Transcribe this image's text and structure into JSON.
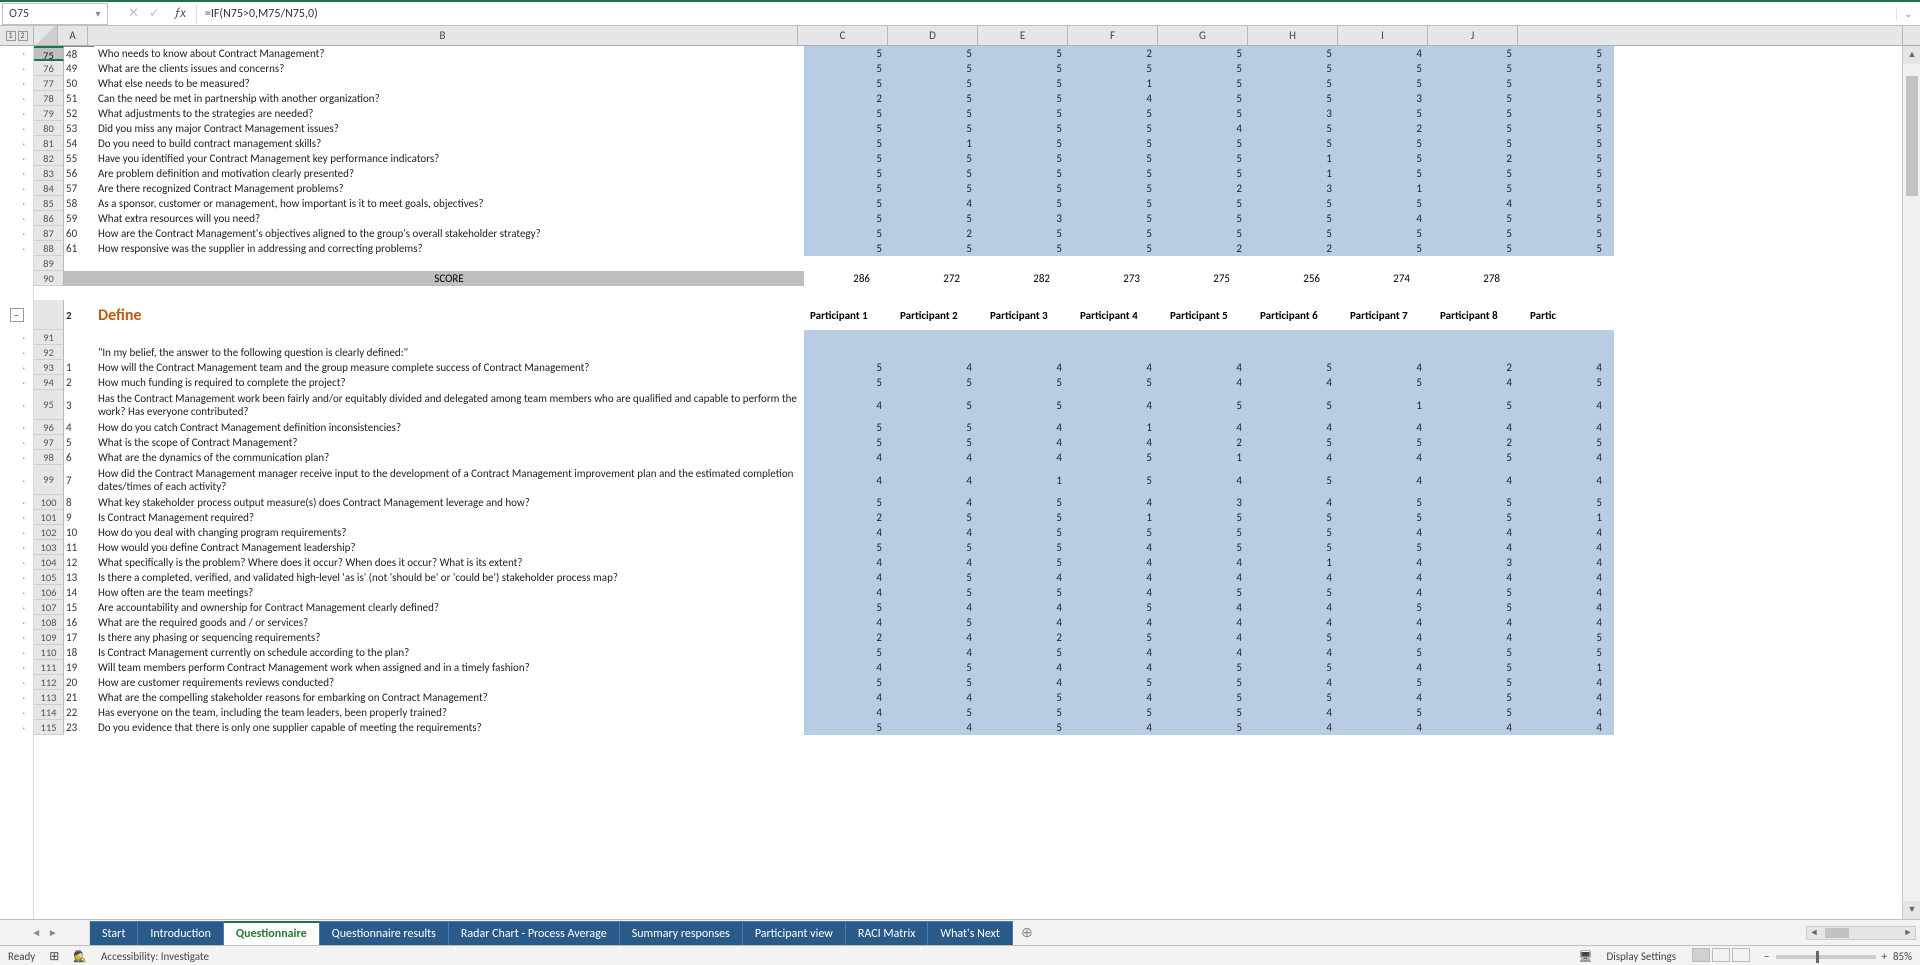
{
  "name_box": "O75",
  "formula": "=IF(N75>0,M75/N75,0)",
  "columns": [
    "A",
    "B",
    "C",
    "D",
    "E",
    "F",
    "G",
    "H",
    "I",
    "J"
  ],
  "participant_headers": [
    "Participant 1",
    "Participant 2",
    "Participant 3",
    "Participant 4",
    "Participant 5",
    "Participant 6",
    "Participant 7",
    "Participant 8",
    "Partic"
  ],
  "section1_rows": [
    {
      "rn": 75,
      "id": "48",
      "q": "Who needs to know about Contract Management?",
      "v": [
        5,
        5,
        5,
        2,
        5,
        5,
        4,
        5,
        5
      ]
    },
    {
      "rn": 76,
      "id": "49",
      "q": "What are the clients issues and concerns?",
      "v": [
        5,
        5,
        5,
        5,
        5,
        5,
        5,
        5,
        5
      ]
    },
    {
      "rn": 77,
      "id": "50",
      "q": "What else needs to be measured?",
      "v": [
        5,
        5,
        5,
        1,
        5,
        5,
        5,
        5,
        5
      ]
    },
    {
      "rn": 78,
      "id": "51",
      "q": "Can the need be met in partnership with another organization?",
      "v": [
        2,
        5,
        5,
        4,
        5,
        5,
        3,
        5,
        5
      ]
    },
    {
      "rn": 79,
      "id": "52",
      "q": "What adjustments to the strategies are needed?",
      "v": [
        5,
        5,
        5,
        5,
        5,
        3,
        5,
        5,
        5
      ]
    },
    {
      "rn": 80,
      "id": "53",
      "q": "Did you miss any major Contract Management issues?",
      "v": [
        5,
        5,
        5,
        5,
        4,
        5,
        2,
        5,
        5
      ]
    },
    {
      "rn": 81,
      "id": "54",
      "q": "Do you need to build contract management skills?",
      "v": [
        5,
        1,
        5,
        5,
        5,
        5,
        5,
        5,
        5
      ]
    },
    {
      "rn": 82,
      "id": "55",
      "q": "Have you identified your Contract Management key performance indicators?",
      "v": [
        5,
        5,
        5,
        5,
        5,
        1,
        5,
        2,
        5
      ]
    },
    {
      "rn": 83,
      "id": "56",
      "q": "Are problem definition and motivation clearly presented?",
      "v": [
        5,
        5,
        5,
        5,
        5,
        1,
        5,
        5,
        5
      ]
    },
    {
      "rn": 84,
      "id": "57",
      "q": "Are there recognized Contract Management problems?",
      "v": [
        5,
        5,
        5,
        5,
        2,
        3,
        1,
        5,
        5
      ]
    },
    {
      "rn": 85,
      "id": "58",
      "q": "As a sponsor, customer or management, how important is it to meet goals, objectives?",
      "v": [
        5,
        4,
        5,
        5,
        5,
        5,
        5,
        4,
        5
      ]
    },
    {
      "rn": 86,
      "id": "59",
      "q": "What extra resources will you need?",
      "v": [
        5,
        5,
        3,
        5,
        5,
        5,
        4,
        5,
        5
      ]
    },
    {
      "rn": 87,
      "id": "60",
      "q": "How are the Contract Management's objectives aligned to the group's overall stakeholder strategy?",
      "v": [
        5,
        2,
        5,
        5,
        5,
        5,
        5,
        5,
        5
      ]
    },
    {
      "rn": 88,
      "id": "61",
      "q": "How responsive was the supplier in addressing and correcting problems?",
      "v": [
        5,
        5,
        5,
        5,
        2,
        2,
        5,
        5,
        5
      ]
    }
  ],
  "blank_rows": [
    89,
    90
  ],
  "score_label": "SCORE",
  "score_values": [
    286,
    272,
    282,
    273,
    275,
    256,
    274,
    278,
    ""
  ],
  "section2_title": "Define",
  "section2_idA": "2",
  "section2_header_row": 91,
  "section2_intro_row": 92,
  "section2_intro": "\"In my belief, the answer to the following question is clearly defined:\"",
  "section2_rows": [
    {
      "rn": 93,
      "id": "1",
      "q": "How will the Contract Management team and the group measure complete success of Contract Management?",
      "v": [
        5,
        4,
        4,
        4,
        4,
        5,
        4,
        2,
        4
      ]
    },
    {
      "rn": 94,
      "id": "2",
      "q": "How much funding is required to complete the project?",
      "v": [
        5,
        5,
        5,
        5,
        4,
        4,
        5,
        4,
        5
      ]
    },
    {
      "rn": 95,
      "id": "3",
      "q": "Has the Contract Management work been fairly and/or equitably divided and delegated among team members who are qualified and capable to perform the work? Has everyone contributed?",
      "v": [
        4,
        5,
        5,
        4,
        5,
        5,
        1,
        5,
        4
      ],
      "tall": true
    },
    {
      "rn": 96,
      "id": "4",
      "q": "How do you catch Contract Management definition inconsistencies?",
      "v": [
        5,
        5,
        4,
        1,
        4,
        4,
        4,
        4,
        4
      ]
    },
    {
      "rn": 97,
      "id": "5",
      "q": "What is the scope of Contract Management?",
      "v": [
        5,
        5,
        4,
        4,
        2,
        5,
        5,
        2,
        5
      ]
    },
    {
      "rn": 98,
      "id": "6",
      "q": "What are the dynamics of the communication plan?",
      "v": [
        4,
        4,
        4,
        5,
        1,
        4,
        4,
        5,
        4
      ]
    },
    {
      "rn": 99,
      "id": "7",
      "q": "How did the Contract Management manager receive input to the development of a Contract Management improvement plan and the estimated completion dates/times of each activity?",
      "v": [
        4,
        4,
        1,
        5,
        4,
        5,
        4,
        4,
        4
      ],
      "tall": true
    },
    {
      "rn": 100,
      "id": "8",
      "q": "What key stakeholder process output measure(s) does Contract Management leverage and how?",
      "v": [
        5,
        4,
        5,
        4,
        3,
        4,
        5,
        5,
        5
      ]
    },
    {
      "rn": 101,
      "id": "9",
      "q": "Is Contract Management required?",
      "v": [
        2,
        5,
        5,
        1,
        5,
        5,
        5,
        5,
        1
      ]
    },
    {
      "rn": 102,
      "id": "10",
      "q": "How do you deal with changing program requirements?",
      "v": [
        4,
        4,
        5,
        5,
        5,
        5,
        4,
        4,
        4
      ]
    },
    {
      "rn": 103,
      "id": "11",
      "q": "How would you define Contract Management leadership?",
      "v": [
        5,
        5,
        5,
        4,
        5,
        5,
        5,
        4,
        4
      ]
    },
    {
      "rn": 104,
      "id": "12",
      "q": "What specifically is the problem? Where does it occur? When does it occur? What is its extent?",
      "v": [
        4,
        4,
        5,
        4,
        4,
        1,
        4,
        3,
        4
      ]
    },
    {
      "rn": 105,
      "id": "13",
      "q": "Is there a completed, verified, and validated high-level 'as is' (not 'should be' or 'could be') stakeholder process map?",
      "v": [
        4,
        5,
        4,
        4,
        4,
        4,
        4,
        4,
        4
      ]
    },
    {
      "rn": 106,
      "id": "14",
      "q": "How often are the team meetings?",
      "v": [
        4,
        5,
        5,
        4,
        5,
        5,
        4,
        5,
        4
      ]
    },
    {
      "rn": 107,
      "id": "15",
      "q": "Are accountability and ownership for Contract Management clearly defined?",
      "v": [
        5,
        4,
        4,
        5,
        4,
        4,
        5,
        5,
        4
      ]
    },
    {
      "rn": 108,
      "id": "16",
      "q": "What are the required goods and / or services?",
      "v": [
        4,
        5,
        4,
        4,
        4,
        4,
        4,
        4,
        4
      ]
    },
    {
      "rn": 109,
      "id": "17",
      "q": "Is there any phasing or sequencing requirements?",
      "v": [
        2,
        4,
        2,
        5,
        4,
        5,
        4,
        4,
        5
      ]
    },
    {
      "rn": 110,
      "id": "18",
      "q": "Is Contract Management currently on schedule according to the plan?",
      "v": [
        5,
        4,
        5,
        4,
        4,
        4,
        5,
        5,
        5
      ]
    },
    {
      "rn": 111,
      "id": "19",
      "q": "Will team members perform Contract Management work when assigned and in a timely fashion?",
      "v": [
        4,
        5,
        4,
        4,
        5,
        5,
        4,
        5,
        1
      ]
    },
    {
      "rn": 112,
      "id": "20",
      "q": "How are customer requirements reviews conducted?",
      "v": [
        5,
        5,
        4,
        5,
        5,
        4,
        5,
        5,
        4
      ]
    },
    {
      "rn": 113,
      "id": "21",
      "q": "What are the compelling stakeholder reasons for embarking on Contract Management?",
      "v": [
        4,
        4,
        5,
        4,
        5,
        5,
        4,
        5,
        4
      ]
    },
    {
      "rn": 114,
      "id": "22",
      "q": "Has everyone on the team, including the team leaders, been properly trained?",
      "v": [
        4,
        5,
        5,
        5,
        5,
        4,
        5,
        5,
        4
      ]
    },
    {
      "rn": 115,
      "id": "23",
      "q": "Do you evidence that there is only one supplier capable of meeting the requirements?",
      "v": [
        5,
        4,
        5,
        4,
        5,
        4,
        4,
        4,
        4
      ]
    }
  ],
  "tabs": [
    {
      "label": "Start",
      "active": false
    },
    {
      "label": "Introduction",
      "active": false
    },
    {
      "label": "Questionnaire",
      "active": true
    },
    {
      "label": "Questionnaire results",
      "active": false
    },
    {
      "label": "Radar Chart - Process Average",
      "active": false
    },
    {
      "label": "Summary responses",
      "active": false
    },
    {
      "label": "Participant view",
      "active": false
    },
    {
      "label": "RACI Matrix",
      "active": false
    },
    {
      "label": "What's Next",
      "active": false
    }
  ],
  "status": {
    "ready": "Ready",
    "acc": "Accessibility: Investigate",
    "display": "Display Settings",
    "zoom": "85%"
  },
  "colors": {
    "blue_cell": "#b8cce4",
    "section_title": "#c05a11",
    "excel_green": "#217346"
  }
}
